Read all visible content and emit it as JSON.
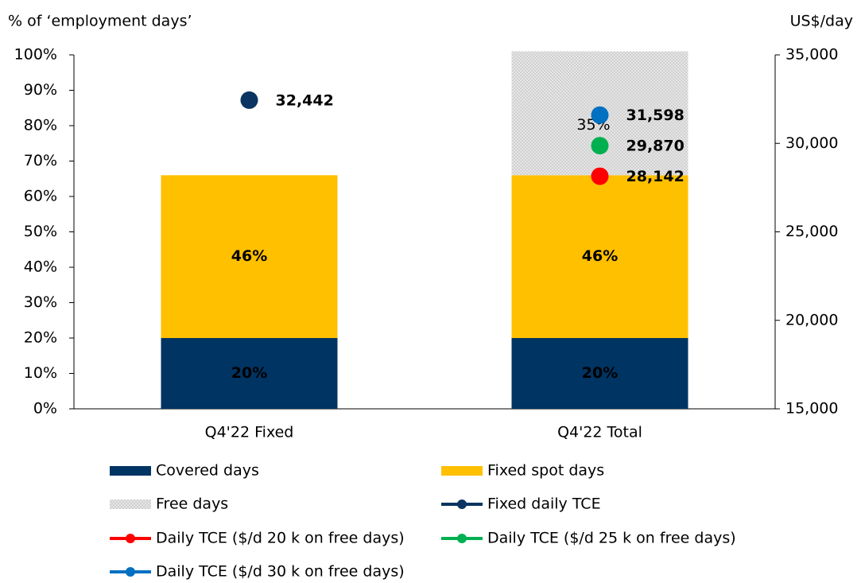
{
  "chart_data": {
    "type": "bar",
    "stacked": true,
    "y_label": "% of ‘employment days’",
    "y2_label": "US$/day",
    "categories": [
      "Q4'22 Fixed",
      "Q4'22 Total"
    ],
    "ylim": [
      0,
      100
    ],
    "yticks": [
      {
        "value": 0,
        "label": "0%"
      },
      {
        "value": 10,
        "label": "10%"
      },
      {
        "value": 20,
        "label": "20%"
      },
      {
        "value": 30,
        "label": "30%"
      },
      {
        "value": 40,
        "label": "40%"
      },
      {
        "value": 50,
        "label": "50%"
      },
      {
        "value": 60,
        "label": "60%"
      },
      {
        "value": 70,
        "label": "70%"
      },
      {
        "value": 80,
        "label": "80%"
      },
      {
        "value": 90,
        "label": "90%"
      },
      {
        "value": 100,
        "label": "100%"
      }
    ],
    "y2lim": [
      15000,
      35000
    ],
    "y2ticks": [
      {
        "value": 15000,
        "label": "15,000"
      },
      {
        "value": 20000,
        "label": "20,000"
      },
      {
        "value": 25000,
        "label": "25,000"
      },
      {
        "value": 30000,
        "label": "30,000"
      },
      {
        "value": 35000,
        "label": "35,000"
      }
    ],
    "series": [
      {
        "name": "Covered days",
        "type": "bar",
        "color": "#003462",
        "values": [
          20,
          20
        ],
        "value_labels": [
          "20%",
          "20%"
        ]
      },
      {
        "name": "Fixed spot days",
        "type": "bar",
        "color": "#ffc000",
        "values": [
          46,
          46
        ],
        "value_labels": [
          "46%",
          "46%"
        ]
      },
      {
        "name": "Free days",
        "type": "bar",
        "color": "#d9d9d9",
        "values": [
          null,
          35
        ],
        "value_labels": [
          null,
          "35%"
        ]
      },
      {
        "name": "Fixed daily TCE",
        "type": "scatter",
        "axis": "y2",
        "color": "#0a3461",
        "values": [
          32442,
          null
        ],
        "value_labels": [
          "32,442",
          null
        ]
      },
      {
        "name": "Daily TCE ($/d 20 k on free days)",
        "type": "scatter",
        "axis": "y2",
        "color": "#ff0000",
        "values": [
          null,
          28142
        ],
        "value_labels": [
          null,
          "28,142"
        ]
      },
      {
        "name": "Daily TCE ($/d 25 k on free days)",
        "type": "scatter",
        "axis": "y2",
        "color": "#00b050",
        "values": [
          null,
          29870
        ],
        "value_labels": [
          null,
          "29,870"
        ]
      },
      {
        "name": "Daily TCE ($/d 30 k on free days)",
        "type": "scatter",
        "axis": "y2",
        "color": "#0070c0",
        "values": [
          null,
          31598
        ],
        "value_labels": [
          null,
          "31,598"
        ]
      }
    ]
  }
}
